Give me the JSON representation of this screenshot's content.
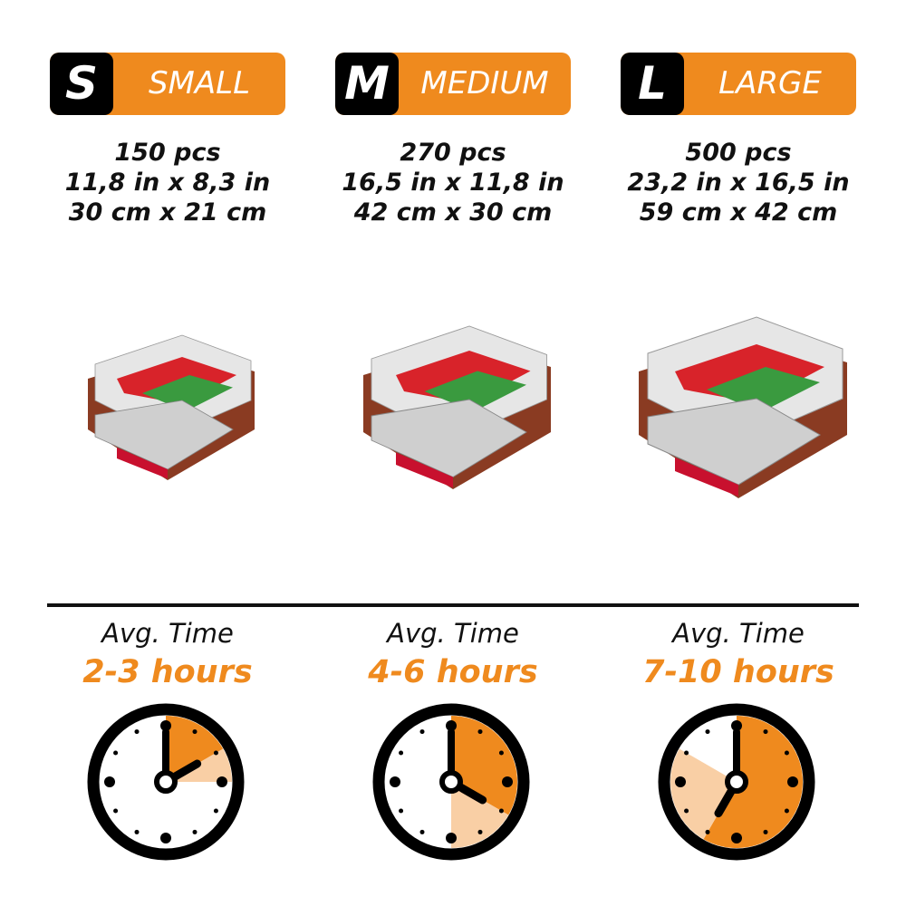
{
  "colors": {
    "accent": "#ef8a1e",
    "accent_light": "#f9cfa5",
    "dark": "#000000"
  },
  "sizes": [
    {
      "letter": "S",
      "label": "SMALL",
      "pieces": "150 pcs",
      "inches": "11,8 in x 8,3 in",
      "cm": "30 cm x 21 cm",
      "avg_label": "Avg. Time",
      "time": "2-3 hours",
      "min_hours": 2,
      "max_hours": 3,
      "scale": 0.8
    },
    {
      "letter": "M",
      "label": "MEDIUM",
      "pieces": "270 pcs",
      "inches": "16,5 in x 11,8 in",
      "cm": "42 cm x 30 cm",
      "avg_label": "Avg. Time",
      "time": "4-6 hours",
      "min_hours": 4,
      "max_hours": 6,
      "scale": 0.9
    },
    {
      "letter": "L",
      "label": "LARGE",
      "pieces": "500 pcs",
      "inches": "23,2 in x 16,5 in",
      "cm": "59 cm x 42 cm",
      "avg_label": "Avg. Time",
      "time": "7-10 hours",
      "min_hours": 7,
      "max_hours": 10,
      "scale": 1.0
    }
  ]
}
